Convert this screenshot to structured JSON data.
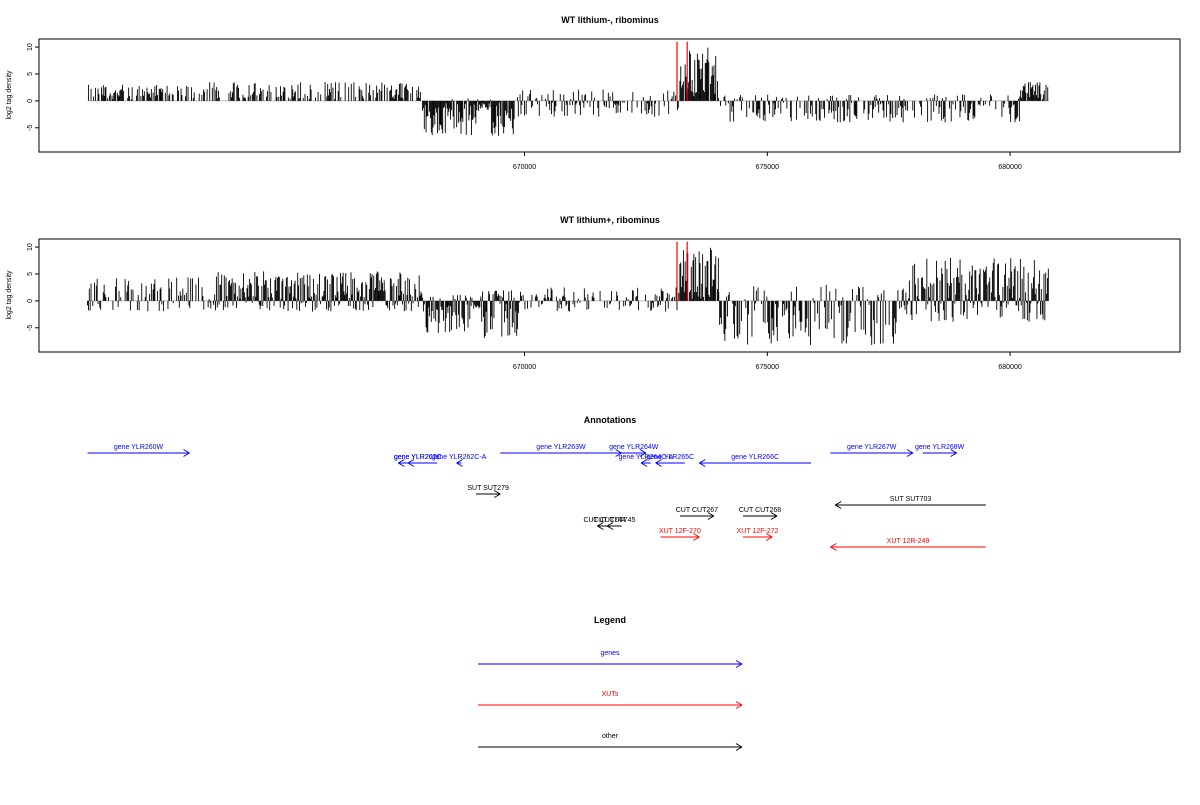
{
  "chart_data": [
    {
      "type": "bar",
      "title": "WT lithium-, ribominus",
      "xlabel": "",
      "ylabel": "log2 tag density",
      "xlim": [
        660000,
        683500
      ],
      "ylim": [
        -9.5,
        11.5
      ],
      "yticks": [
        10,
        5,
        0,
        -5
      ],
      "xticks": [
        670000,
        675000,
        680000
      ],
      "xtick_labels": [
        "670000",
        "675000",
        "680000"
      ],
      "highlight_color": "#ff0000",
      "highlight_x": [
        673140,
        673350
      ],
      "segments": [
        {
          "x0": 661000,
          "x1": 663200,
          "hi": 3.0,
          "lo": 0
        },
        {
          "x0": 663300,
          "x1": 667900,
          "hi": 3.5,
          "lo": 0
        },
        {
          "x0": 667900,
          "x1": 669000,
          "hi": 0.5,
          "lo": -6.5
        },
        {
          "x0": 669000,
          "x1": 669300,
          "hi": 0.3,
          "lo": -2
        },
        {
          "x0": 669300,
          "x1": 669800,
          "hi": 0.2,
          "lo": -7
        },
        {
          "x0": 669800,
          "x1": 673200,
          "hi": 2.2,
          "lo": -3
        },
        {
          "x0": 673200,
          "x1": 674000,
          "hi": 10,
          "lo": 0
        },
        {
          "x0": 674000,
          "x1": 680200,
          "hi": 1.2,
          "lo": -4
        },
        {
          "x0": 680200,
          "x1": 680800,
          "hi": 3.5,
          "lo": 0
        }
      ]
    },
    {
      "type": "bar",
      "title": "WT lithium+, ribominus",
      "xlabel": "",
      "ylabel": "log2 tag density",
      "xlim": [
        660000,
        683500
      ],
      "ylim": [
        -9.5,
        11.5
      ],
      "yticks": [
        10,
        5,
        0,
        -5
      ],
      "xticks": [
        670000,
        675000,
        680000
      ],
      "xtick_labels": [
        "670000",
        "675000",
        "680000"
      ],
      "highlight_color": "#ff0000",
      "highlight_x": [
        673140,
        673350
      ],
      "segments": [
        {
          "x0": 661000,
          "x1": 663600,
          "hi": 4.5,
          "lo": -2
        },
        {
          "x0": 663600,
          "x1": 667900,
          "hi": 5.5,
          "lo": -2
        },
        {
          "x0": 667900,
          "x1": 668900,
          "hi": 1.2,
          "lo": -6
        },
        {
          "x0": 668900,
          "x1": 669100,
          "hi": 0.5,
          "lo": -1.5
        },
        {
          "x0": 669100,
          "x1": 669900,
          "hi": 2.0,
          "lo": -7
        },
        {
          "x0": 669900,
          "x1": 673200,
          "hi": 2.5,
          "lo": -2
        },
        {
          "x0": 673200,
          "x1": 674000,
          "hi": 10,
          "lo": 0
        },
        {
          "x0": 674000,
          "x1": 677800,
          "hi": 3.0,
          "lo": -8.5
        },
        {
          "x0": 677800,
          "x1": 680800,
          "hi": 8.0,
          "lo": -4
        }
      ]
    }
  ],
  "annotations": {
    "title": "Annotations",
    "features": [
      {
        "label": "gene YLR260W",
        "start": 661000,
        "end": 663100,
        "strand": "+",
        "row": 0,
        "color": "#0000ff"
      },
      {
        "label": "gene YLR262C",
        "start": 668200,
        "end": 667400,
        "strand": "-",
        "row": 1,
        "color": "#0000ff"
      },
      {
        "label": "gene YLR261C",
        "start": 668000,
        "end": 667600,
        "strand": "-",
        "row": 1,
        "color": "#0000ff"
      },
      {
        "label": "gene YLR262C-A",
        "start": 668700,
        "end": 668600,
        "strand": "-",
        "row": 1,
        "color": "#0000ff"
      },
      {
        "label": "gene YLR263W",
        "start": 669500,
        "end": 672000,
        "strand": "+",
        "row": 0,
        "color": "#0000ff"
      },
      {
        "label": "gene YLR264W",
        "start": 672000,
        "end": 672500,
        "strand": "+",
        "row": 0,
        "color": "#0000ff"
      },
      {
        "label": "gene YLR264C-A",
        "start": 672600,
        "end": 672400,
        "strand": "-",
        "row": 1,
        "color": "#0000ff"
      },
      {
        "label": "gene YLR265C",
        "start": 673300,
        "end": 672700,
        "strand": "-",
        "row": 1,
        "color": "#0000ff"
      },
      {
        "label": "gene YLR266C",
        "start": 675900,
        "end": 673600,
        "strand": "-",
        "row": 1,
        "color": "#0000ff"
      },
      {
        "label": "gene YLR267W",
        "start": 676300,
        "end": 678000,
        "strand": "+",
        "row": 0,
        "color": "#0000ff"
      },
      {
        "label": "gene YLR268W",
        "start": 678200,
        "end": 678900,
        "strand": "+",
        "row": 0,
        "color": "#0000ff"
      },
      {
        "label": "SUT SUT279",
        "start": 669000,
        "end": 669500,
        "strand": "+",
        "row": 3,
        "color": "#000000"
      },
      {
        "label": "SUT SUT703",
        "start": 679500,
        "end": 676400,
        "strand": "-",
        "row": 4,
        "color": "#000000"
      },
      {
        "label": "CUT CUT744",
        "start": 671800,
        "end": 671500,
        "strand": "-",
        "row": 6,
        "color": "#000000"
      },
      {
        "label": "CUT CUT745",
        "start": 672000,
        "end": 671700,
        "strand": "-",
        "row": 6,
        "color": "#000000"
      },
      {
        "label": "CUT CUT267",
        "start": 673200,
        "end": 673900,
        "strand": "+",
        "row": 5,
        "color": "#000000"
      },
      {
        "label": "CUT CUT268",
        "start": 674500,
        "end": 675200,
        "strand": "+",
        "row": 5,
        "color": "#000000"
      },
      {
        "label": "XUT 12F-270",
        "start": 672800,
        "end": 673600,
        "strand": "+",
        "row": 7,
        "color": "#ff0000"
      },
      {
        "label": "XUT 12F-272",
        "start": 674500,
        "end": 675100,
        "strand": "+",
        "row": 7,
        "color": "#ff0000"
      },
      {
        "label": "XUT 12R-249",
        "start": 679500,
        "end": 676300,
        "strand": "-",
        "row": 8,
        "color": "#ff0000"
      }
    ]
  },
  "legend": {
    "title": "Legend",
    "items": [
      {
        "label": "genes",
        "color": "#0000ff"
      },
      {
        "label": "XUTs",
        "color": "#ff0000"
      },
      {
        "label": "other",
        "color": "#000000"
      }
    ]
  }
}
